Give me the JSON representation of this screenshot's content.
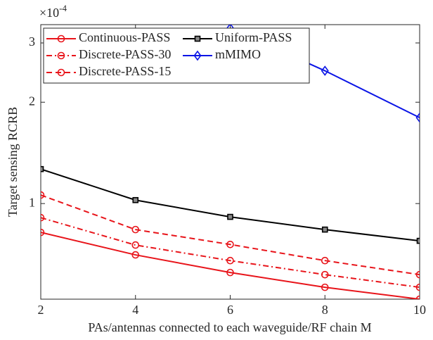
{
  "chart_data": {
    "type": "line",
    "xlabel": "PAs/antennas connected to each waveguide/RF chain M",
    "ylabel": "Target sensing RCRB",
    "y_multiplier": {
      "base": "×10",
      "exponent": "-4"
    },
    "x": [
      2,
      4,
      6,
      8,
      10
    ],
    "xlim": [
      2,
      10
    ],
    "xticks": [
      2,
      4,
      6,
      8,
      10
    ],
    "ylim": [
      0.52,
      3.4
    ],
    "yticks": [
      1,
      2,
      3
    ],
    "ylog": true,
    "legend": "upper left",
    "series": [
      {
        "name": "Continuous-PASS",
        "color": "#e8141a",
        "dash": "solid",
        "marker": "circle",
        "values": [
          0.821,
          0.704,
          0.624,
          0.564,
          0.52
        ]
      },
      {
        "name": "Uniform-PASS",
        "color": "#000000",
        "dash": "solid",
        "marker": "square",
        "values": [
          1.266,
          1.024,
          0.913,
          0.837,
          0.775
        ]
      },
      {
        "name": "Discrete-PASS-30",
        "color": "#e8141a",
        "dash": "dashdot",
        "marker": "circle",
        "values": [
          0.908,
          0.753,
          0.677,
          0.615,
          0.564
        ]
      },
      {
        "name": "mMIMO",
        "color": "#0a14e6",
        "dash": "solid",
        "marker": "diamond",
        "values": [
          null,
          null,
          3.32,
          2.48,
          1.8
        ]
      },
      {
        "name": "Discrete-PASS-15",
        "color": "#e8141a",
        "dash": "dashed",
        "marker": "circle",
        "values": [
          1.06,
          0.837,
          0.756,
          0.677,
          0.615
        ]
      }
    ]
  }
}
